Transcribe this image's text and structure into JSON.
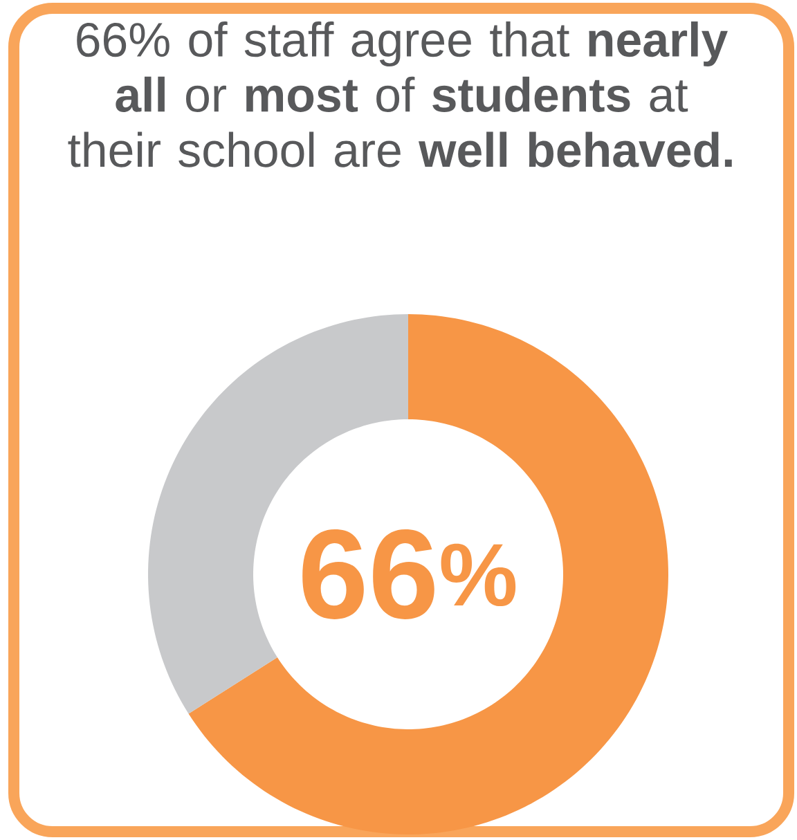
{
  "chart_data": {
    "type": "donut",
    "title": "66% of staff agree that **nearly all** or **most** of **students** at their school are **well behaved.**",
    "categories": [
      null,
      null
    ],
    "values": [
      66,
      34
    ],
    "colors": [
      "#f79646",
      "#c8c9cb"
    ],
    "annotations": [
      "66$^{%}$"
    ]
  }
}
